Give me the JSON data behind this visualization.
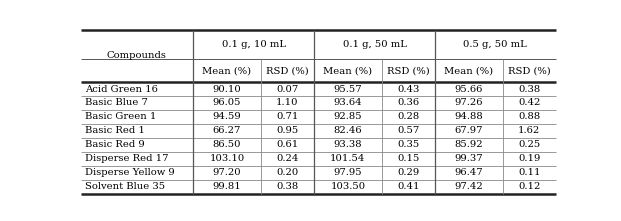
{
  "compounds": [
    "Acid Green 16",
    "Basic Blue 7",
    "Basic Green 1",
    "Basic Red 1",
    "Basic Red 9",
    "Disperse Red 17",
    "Disperse Yellow 9",
    "Solvent Blue 35"
  ],
  "col_group1": "0.1 g, 10 mL",
  "col_group2": "0.1 g, 50 mL",
  "col_group3": "0.5 g, 50 mL",
  "col_header": "Compounds",
  "sub_headers": [
    "Mean (%)",
    "RSD (%)",
    "Mean (%)",
    "RSD (%)",
    "Mean (%)",
    "RSD (%)"
  ],
  "data": [
    [
      90.1,
      0.07,
      95.57,
      0.43,
      95.66,
      0.38
    ],
    [
      96.05,
      1.1,
      93.64,
      0.36,
      97.26,
      0.42
    ],
    [
      94.59,
      0.71,
      92.85,
      0.28,
      94.88,
      0.88
    ],
    [
      66.27,
      0.95,
      82.46,
      0.57,
      67.97,
      1.62
    ],
    [
      86.5,
      0.61,
      93.38,
      0.35,
      85.92,
      0.25
    ],
    [
      103.1,
      0.24,
      101.54,
      0.15,
      99.37,
      0.19
    ],
    [
      97.2,
      0.2,
      97.95,
      0.29,
      96.47,
      0.11
    ],
    [
      99.81,
      0.38,
      103.5,
      0.41,
      97.42,
      0.12
    ]
  ],
  "font_size": 7.2,
  "line_color_thick": "#222222",
  "line_color_thin": "#888888",
  "line_color_mid": "#555555"
}
